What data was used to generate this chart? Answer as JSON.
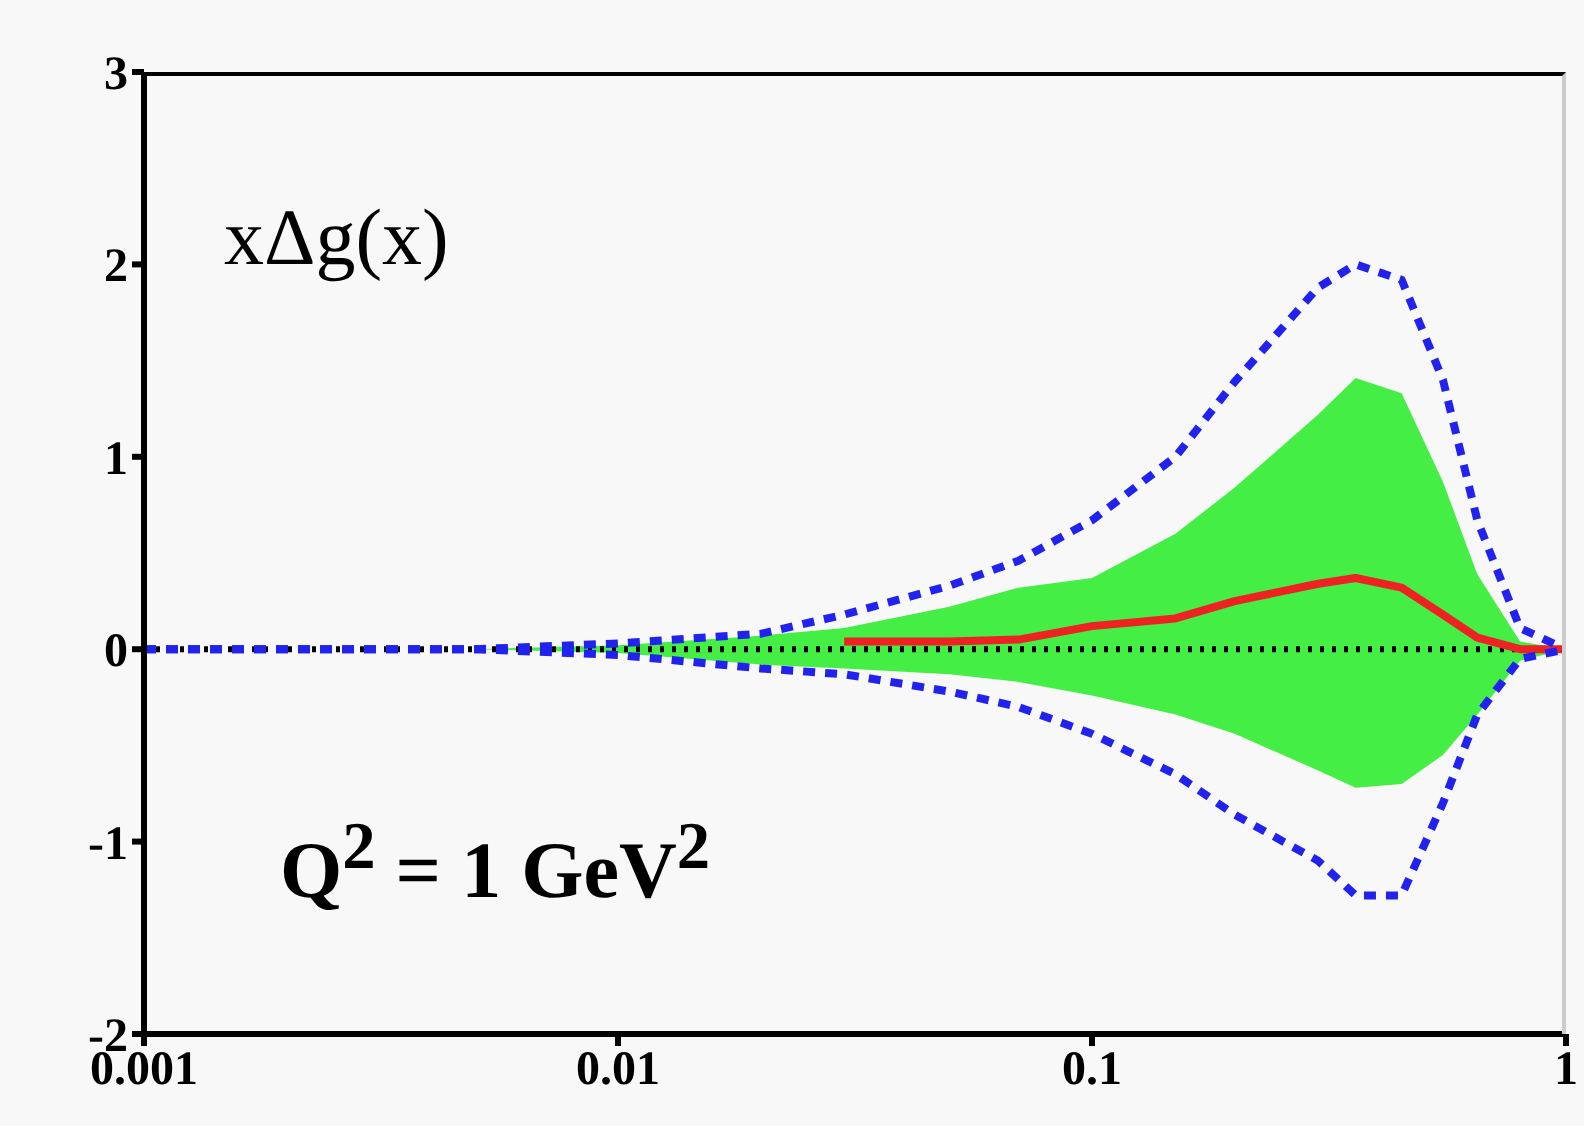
{
  "chart_data": {
    "type": "line",
    "log": "x",
    "x": [
      0.001,
      0.005,
      0.01,
      0.02,
      0.03,
      0.05,
      0.07,
      0.1,
      0.15,
      0.2,
      0.3,
      0.36,
      0.45,
      0.55,
      0.65,
      0.8,
      1
    ],
    "series": [
      {
        "color": "#ee2222",
        "line_style": "solid",
        "values": [
          null,
          null,
          null,
          null,
          0.04,
          0.04,
          0.05,
          0.12,
          0.16,
          0.25,
          0.34,
          0.37,
          0.32,
          0.18,
          0.06,
          0,
          0
        ],
        "lower": [
          0,
          0,
          -0.02,
          -0.08,
          -0.1,
          -0.13,
          -0.17,
          -0.24,
          -0.34,
          -0.44,
          -0.63,
          -0.72,
          -0.7,
          -0.55,
          -0.34,
          -0.06,
          0
        ],
        "upper": [
          0,
          0,
          0.02,
          0.07,
          0.11,
          0.22,
          0.32,
          0.37,
          0.6,
          0.84,
          1.22,
          1.41,
          1.33,
          0.87,
          0.39,
          0.04,
          0
        ]
      },
      {
        "color": "#2222ee",
        "line_style": "dashed",
        "values": [
          0,
          0,
          0.03,
          0.08,
          0.18,
          0.33,
          0.46,
          0.67,
          1.0,
          1.39,
          1.88,
          2.0,
          1.92,
          1.4,
          0.67,
          0.11,
          0
        ]
      },
      {
        "color": "#2222ee",
        "line_style": "dashed",
        "values": [
          0,
          0,
          -0.03,
          -0.1,
          -0.13,
          -0.22,
          -0.3,
          -0.44,
          -0.65,
          -0.86,
          -1.1,
          -1.28,
          -1.28,
          -0.8,
          -0.34,
          -0.05,
          0
        ]
      }
    ],
    "xlim": [
      0.001,
      1
    ],
    "xticks": [
      0.001,
      0.01,
      0.1,
      1
    ],
    "ylim": [
      -2,
      3
    ],
    "yticks": [
      -2,
      -1,
      0,
      1,
      2,
      3
    ],
    "grid": false,
    "legend": false,
    "marker": "none",
    "ref_lines": [
      {
        "axis": "y",
        "value": 0,
        "color": "#000000",
        "line_style": "dotted"
      }
    ],
    "annotations": [
      "xΔg(x)",
      "Q$^{2}$ = 1 GeV$^{2}$"
    ]
  }
}
